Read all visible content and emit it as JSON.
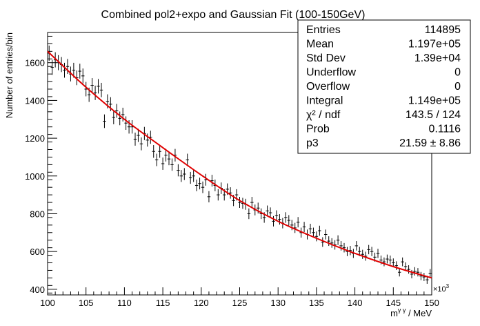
{
  "chart_data": {
    "type": "scatter",
    "title": "Combined pol2+expo and Gaussian Fit (100-150GeV)",
    "xlabel_main": "m",
    "xlabel_sup": "γ γ",
    "xlabel_unit": " / MeV",
    "ylabel": "Number of entries/bin",
    "x_multiplier": "×10",
    "x_multiplier_exp": "3",
    "xlim": [
      100,
      150
    ],
    "ylim": [
      370,
      1760
    ],
    "x_ticks": [
      100,
      105,
      110,
      115,
      120,
      125,
      130,
      135,
      140,
      145,
      150
    ],
    "y_ticks": [
      400,
      600,
      800,
      1000,
      1200,
      1400,
      1600
    ],
    "series": [
      {
        "kind": "points",
        "color": "#000000",
        "x": [
          100.2,
          100.6,
          101.0,
          101.4,
          101.8,
          102.2,
          102.6,
          103.0,
          103.4,
          103.8,
          104.2,
          104.6,
          105.0,
          105.4,
          105.8,
          106.2,
          106.6,
          107.0,
          107.4,
          107.8,
          108.2,
          108.6,
          109.0,
          109.4,
          109.8,
          110.2,
          110.6,
          111.0,
          111.4,
          111.8,
          112.2,
          112.6,
          113.0,
          113.4,
          113.8,
          114.2,
          114.6,
          115.0,
          115.4,
          115.8,
          116.2,
          116.6,
          117.0,
          117.4,
          117.8,
          118.2,
          118.6,
          119.0,
          119.4,
          119.8,
          120.2,
          120.6,
          121.0,
          121.4,
          121.8,
          122.2,
          122.6,
          123.0,
          123.4,
          123.8,
          124.2,
          124.6,
          125.0,
          125.4,
          125.8,
          126.2,
          126.6,
          127.0,
          127.4,
          127.8,
          128.2,
          128.6,
          129.0,
          129.4,
          129.8,
          130.2,
          130.6,
          131.0,
          131.4,
          131.8,
          132.2,
          132.6,
          133.0,
          133.4,
          133.8,
          134.2,
          134.6,
          135.0,
          135.4,
          135.8,
          136.2,
          136.6,
          137.0,
          137.4,
          137.8,
          138.2,
          138.6,
          139.0,
          139.4,
          139.8,
          140.2,
          140.6,
          141.0,
          141.4,
          141.8,
          142.2,
          142.6,
          143.0,
          143.4,
          143.8,
          144.2,
          144.6,
          145.0,
          145.4,
          145.8,
          146.2,
          146.6,
          147.0,
          147.4,
          147.8,
          148.2,
          148.6,
          149.0,
          149.4,
          149.8
        ],
        "y": [
          1650,
          1575,
          1615,
          1600,
          1590,
          1560,
          1580,
          1540,
          1560,
          1520,
          1555,
          1530,
          1460,
          1430,
          1480,
          1440,
          1475,
          1455,
          1290,
          1395,
          1380,
          1310,
          1345,
          1305,
          1325,
          1280,
          1260,
          1260,
          1195,
          1215,
          1170,
          1225,
          1190,
          1205,
          1130,
          1085,
          1130,
          1065,
          1110,
          1090,
          1060,
          1110,
          1030,
          1000,
          1010,
          1085,
          990,
          1000,
          950,
          960,
          940,
          980,
          890,
          975,
          950,
          900,
          935,
          900,
          930,
          910,
          870,
          900,
          860,
          855,
          850,
          800,
          860,
          820,
          830,
          800,
          780,
          815,
          805,
          760,
          790,
          770,
          750,
          780,
          765,
          740,
          725,
          755,
          700,
          730,
          690,
          720,
          700,
          680,
          710,
          650,
          690,
          655,
          645,
          635,
          660,
          630,
          620,
          600,
          605,
          590,
          630,
          600,
          585,
          575,
          610,
          600,
          570,
          590,
          555,
          545,
          560,
          555,
          540,
          525,
          490,
          545,
          520,
          505,
          480,
          495,
          490,
          470,
          465,
          450,
          485
        ]
      },
      {
        "kind": "fit-line",
        "color": "#e00000",
        "x": [
          100,
          105,
          110,
          115,
          120,
          125,
          130,
          135,
          140,
          145,
          150
        ],
        "y": [
          1660,
          1470,
          1300,
          1150,
          1005,
          870,
          760,
          670,
          590,
          520,
          460
        ]
      }
    ]
  },
  "stats_box": {
    "rows": [
      {
        "label": "Entries",
        "value": "114895"
      },
      {
        "label": "Mean",
        "value": "1.197e+05"
      },
      {
        "label": "Std Dev",
        "value": "1.39e+04"
      },
      {
        "label": "Underflow",
        "value": "0"
      },
      {
        "label": "Overflow",
        "value": "0"
      },
      {
        "label": "Integral",
        "value": "1.149e+05"
      },
      {
        "label": "χ² / ndf",
        "value": "143.5 / 124"
      },
      {
        "label": "Prob",
        "value": "0.1116"
      },
      {
        "label": "p3",
        "value": "21.59 ± 8.86"
      }
    ]
  }
}
